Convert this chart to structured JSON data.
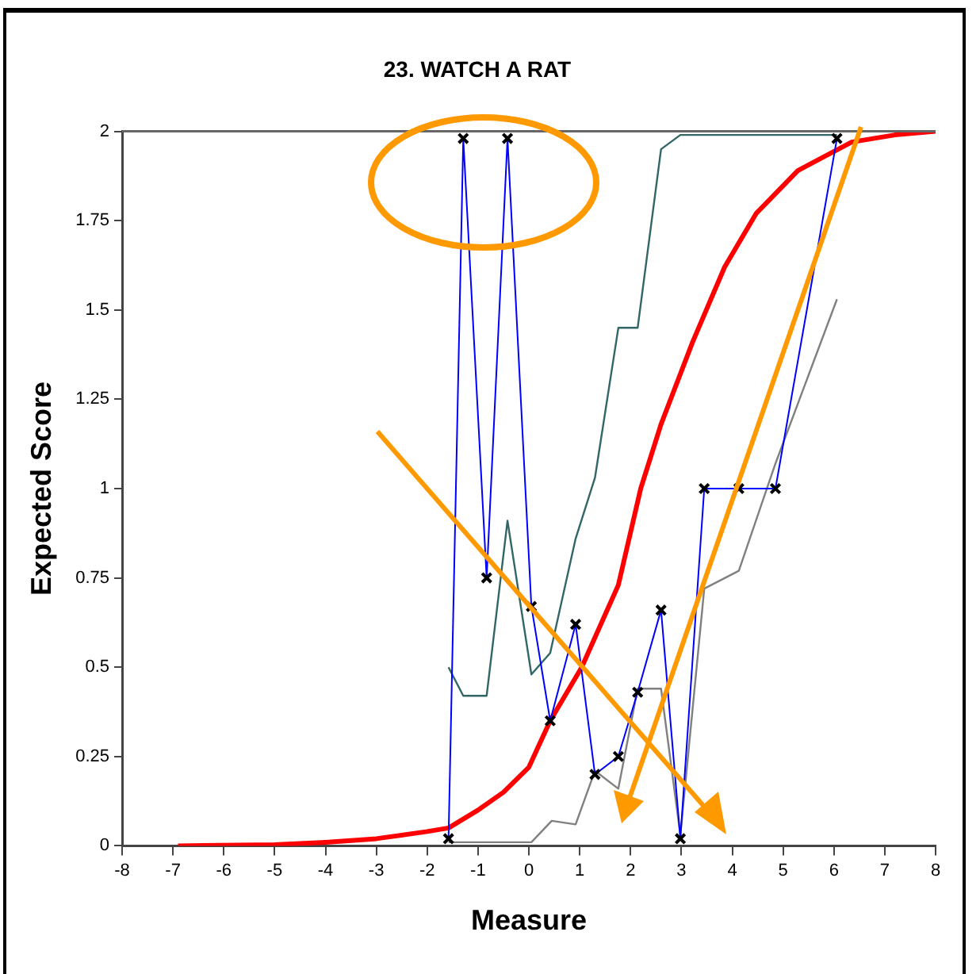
{
  "chart_data": {
    "type": "line",
    "title": "23. WATCH A RAT",
    "xlabel": "Measure",
    "ylabel": "Expected Score",
    "xlim": [
      -8,
      8
    ],
    "xticks": [
      -8,
      -7,
      -6,
      -5,
      -4,
      -3,
      -2,
      -1,
      0,
      1,
      2,
      3,
      4,
      5,
      6,
      7,
      8
    ],
    "ylim": [
      0,
      2
    ],
    "yticks": [
      0,
      0.25,
      0.5,
      0.75,
      1,
      1.25,
      1.5,
      1.75,
      2
    ],
    "grid": false,
    "legend": false,
    "line_style": "solid",
    "series": [
      {
        "color": "#ff0000",
        "marker": "none",
        "x": [
          -6.9,
          -5,
          -4,
          -3,
          -2,
          -1.58,
          -1,
          -0.5,
          0,
          0.42,
          1.04,
          1.76,
          2.2,
          2.6,
          3.22,
          3.85,
          4.47,
          5.29,
          6.35,
          7.2,
          8
        ],
        "values": [
          0,
          0.003,
          0.01,
          0.02,
          0.04,
          0.05,
          0.1,
          0.15,
          0.22,
          0.35,
          0.5,
          0.73,
          1,
          1.18,
          1.41,
          1.62,
          1.77,
          1.89,
          1.97,
          1.99,
          2
        ]
      },
      {
        "color": "#336666",
        "marker": "none",
        "x": [
          -1.58,
          -1.29,
          -0.83,
          -0.42,
          0.05,
          0.42,
          0.92,
          1.3,
          1.76,
          2.14,
          2.6,
          2.98,
          6.06
        ],
        "values": [
          0.5,
          0.42,
          0.42,
          0.91,
          0.48,
          0.54,
          0.86,
          1.03,
          1.45,
          1.45,
          1.95,
          1.99,
          1.99
        ]
      },
      {
        "color": "#808080",
        "marker": "none",
        "x": [
          -1.58,
          0.05,
          0.45,
          0.92,
          1.3,
          1.76,
          2.14,
          2.6,
          2.98,
          3.45,
          4.13,
          4.85,
          6.06
        ],
        "values": [
          0.01,
          0.01,
          0.07,
          0.06,
          0.21,
          0.16,
          0.44,
          0.44,
          0.03,
          0.72,
          0.77,
          1.07,
          1.53
        ]
      },
      {
        "color": "#0000ff",
        "marker": "cross",
        "x": [
          -1.58,
          -1.29,
          -0.83,
          -0.42,
          0.05,
          0.42,
          0.92,
          1.3,
          1.76,
          2.14,
          2.6,
          2.98,
          3.45,
          4.13,
          4.85,
          6.06
        ],
        "values": [
          0.02,
          1.98,
          0.75,
          1.98,
          0.67,
          0.35,
          0.62,
          0.2,
          0.25,
          0.43,
          0.66,
          0.02,
          1,
          1,
          1,
          1.98
        ]
      }
    ]
  }
}
